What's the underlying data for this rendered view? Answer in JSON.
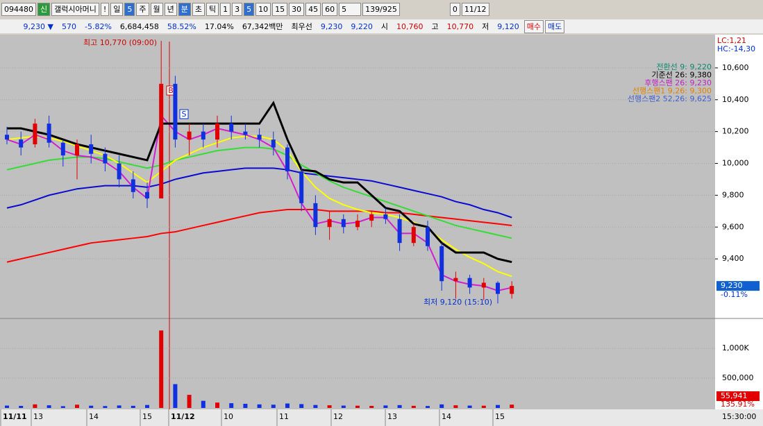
{
  "toolbar": {
    "code": "094480",
    "badge": "신",
    "name": "갤럭시아머니",
    "alert": "!",
    "periods": [
      "일",
      "5",
      "주",
      "월",
      "년",
      "분",
      "초",
      "틱"
    ],
    "intervals": [
      "1",
      "3",
      "5",
      "10",
      "15",
      "30",
      "45",
      "60"
    ],
    "count": "5",
    "shown": "139",
    "total": "/925",
    "date": "11/12",
    "check": "0"
  },
  "quote_bar": {
    "price": "9,230 ▼",
    "change": "570",
    "change_pct": "-5.82%",
    "volume": "6,684,458",
    "ratio1": "58.52%",
    "ratio2": "17.04%",
    "amount": "67,342백만",
    "best_label": "최우선",
    "ask": "9,230",
    "bid": "9,220",
    "open_label": "시",
    "open": "10,760",
    "high_label": "고",
    "high": "10,770",
    "low_label": "저",
    "low": "9,120",
    "buy": "매수",
    "sell": "매도"
  },
  "price_chart": {
    "type": "candlestick",
    "ylim": [
      9030,
      10800
    ],
    "yticks": [
      {
        "value": 9400,
        "label": "9,400"
      },
      {
        "value": 9600,
        "label": "9,600"
      },
      {
        "value": 9800,
        "label": "9,800"
      },
      {
        "value": 10000,
        "label": "10,000"
      },
      {
        "value": 10200,
        "label": "10,200"
      },
      {
        "value": 10400,
        "label": "10,400"
      },
      {
        "value": 10600,
        "label": "10,600"
      }
    ],
    "candles": [
      {
        "open": 10180,
        "high": 10230,
        "low": 10120,
        "close": 10150
      },
      {
        "open": 10150,
        "high": 10200,
        "low": 10050,
        "close": 10100
      },
      {
        "open": 10120,
        "high": 10280,
        "low": 10100,
        "close": 10250
      },
      {
        "open": 10250,
        "high": 10300,
        "low": 10100,
        "close": 10130
      },
      {
        "open": 10130,
        "high": 10150,
        "low": 9980,
        "close": 10050
      },
      {
        "open": 10050,
        "high": 10150,
        "low": 9900,
        "close": 10120
      },
      {
        "open": 10120,
        "high": 10180,
        "low": 10000,
        "close": 10060
      },
      {
        "open": 10060,
        "high": 10100,
        "low": 9950,
        "close": 10000
      },
      {
        "open": 10000,
        "high": 10050,
        "low": 9850,
        "close": 9900
      },
      {
        "open": 9900,
        "high": 9950,
        "low": 9780,
        "close": 9820
      },
      {
        "open": 9820,
        "high": 9880,
        "low": 9720,
        "close": 9780
      },
      {
        "open": 9780,
        "high": 10770,
        "low": 9780,
        "close": 10500
      },
      {
        "open": 10500,
        "high": 10550,
        "low": 10100,
        "close": 10150
      },
      {
        "open": 10150,
        "high": 10250,
        "low": 10050,
        "close": 10200
      },
      {
        "open": 10200,
        "high": 10250,
        "low": 10100,
        "close": 10150
      },
      {
        "open": 10150,
        "high": 10300,
        "low": 10100,
        "close": 10250
      },
      {
        "open": 10250,
        "high": 10300,
        "low": 10150,
        "close": 10200
      },
      {
        "open": 10200,
        "high": 10250,
        "low": 10150,
        "close": 10180
      },
      {
        "open": 10180,
        "high": 10220,
        "low": 10100,
        "close": 10150
      },
      {
        "open": 10150,
        "high": 10200,
        "low": 10050,
        "close": 10100
      },
      {
        "open": 10100,
        "high": 10120,
        "low": 9900,
        "close": 9950
      },
      {
        "open": 9950,
        "high": 9980,
        "low": 9700,
        "close": 9750
      },
      {
        "open": 9750,
        "high": 9800,
        "low": 9550,
        "close": 9600
      },
      {
        "open": 9600,
        "high": 9700,
        "low": 9520,
        "close": 9650
      },
      {
        "open": 9650,
        "high": 9680,
        "low": 9560,
        "close": 9600
      },
      {
        "open": 9600,
        "high": 9680,
        "low": 9580,
        "close": 9640
      },
      {
        "open": 9640,
        "high": 9700,
        "low": 9600,
        "close": 9680
      },
      {
        "open": 9680,
        "high": 9720,
        "low": 9620,
        "close": 9650
      },
      {
        "open": 9650,
        "high": 9680,
        "low": 9450,
        "close": 9500
      },
      {
        "open": 9500,
        "high": 9620,
        "low": 9480,
        "close": 9600
      },
      {
        "open": 9600,
        "high": 9640,
        "low": 9450,
        "close": 9480
      },
      {
        "open": 9480,
        "high": 9500,
        "low": 9200,
        "close": 9260
      },
      {
        "open": 9260,
        "high": 9320,
        "low": 9150,
        "close": 9280
      },
      {
        "open": 9280,
        "high": 9300,
        "low": 9180,
        "close": 9220
      },
      {
        "open": 9220,
        "high": 9280,
        "low": 9140,
        "close": 9250
      },
      {
        "open": 9250,
        "high": 9260,
        "low": 9120,
        "close": 9180
      },
      {
        "open": 9180,
        "high": 9260,
        "low": 9150,
        "close": 9230
      }
    ],
    "lines": [
      {
        "color": "#ff0000",
        "values": [
          9380,
          9400,
          9420,
          9440,
          9460,
          9480,
          9500,
          9510,
          9520,
          9530,
          9540,
          9560,
          9570,
          9590,
          9610,
          9630,
          9650,
          9670,
          9690,
          9700,
          9710,
          9710,
          9710,
          9700,
          9700,
          9700,
          9700,
          9690,
          9690,
          9680,
          9670,
          9660,
          9650,
          9640,
          9630,
          9620,
          9610
        ]
      },
      {
        "color": "#0a0ad0",
        "values": [
          9720,
          9740,
          9770,
          9800,
          9820,
          9840,
          9850,
          9860,
          9860,
          9860,
          9850,
          9870,
          9900,
          9920,
          9940,
          9950,
          9960,
          9970,
          9970,
          9970,
          9960,
          9940,
          9930,
          9920,
          9910,
          9900,
          9890,
          9870,
          9850,
          9830,
          9810,
          9790,
          9760,
          9740,
          9710,
          9690,
          9660
        ]
      },
      {
        "color": "#33dd33",
        "values": [
          9960,
          9980,
          10000,
          10020,
          10030,
          10040,
          10040,
          10030,
          10010,
          9990,
          9970,
          9990,
          10020,
          10040,
          10060,
          10080,
          10090,
          10100,
          10100,
          10090,
          10050,
          9990,
          9940,
          9890,
          9850,
          9820,
          9790,
          9760,
          9730,
          9700,
          9670,
          9640,
          9610,
          9590,
          9570,
          9550,
          9530
        ]
      },
      {
        "color": "#ffff00",
        "values": [
          10150,
          10160,
          10170,
          10160,
          10140,
          10110,
          10080,
          10050,
          10000,
          9940,
          9880,
          9950,
          10020,
          10060,
          10100,
          10130,
          10160,
          10170,
          10170,
          10150,
          10080,
          9950,
          9850,
          9780,
          9740,
          9710,
          9690,
          9680,
          9660,
          9630,
          9590,
          9520,
          9460,
          9410,
          9370,
          9320,
          9290
        ]
      },
      {
        "color": "#d020d0",
        "values": [
          10150,
          10120,
          10180,
          10150,
          10080,
          10050,
          10040,
          10010,
          9950,
          9850,
          9780,
          10300,
          10200,
          10150,
          10180,
          10220,
          10200,
          10180,
          10150,
          10100,
          9950,
          9750,
          9620,
          9640,
          9620,
          9630,
          9660,
          9660,
          9560,
          9560,
          9500,
          9300,
          9260,
          9240,
          9230,
          9200,
          9220
        ]
      },
      {
        "color": "#000000",
        "values": [
          10220,
          10220,
          10200,
          10180,
          10150,
          10120,
          10100,
          10080,
          10060,
          10040,
          10020,
          10250,
          10250,
          10250,
          10250,
          10250,
          10250,
          10250,
          10250,
          10380,
          10150,
          9960,
          9950,
          9900,
          9880,
          9880,
          9800,
          9720,
          9700,
          9620,
          9600,
          9500,
          9440,
          9440,
          9440,
          9400,
          9380
        ]
      }
    ],
    "legend": [
      {
        "text": "전환선 9: 9,220",
        "color": "#0c8a6a"
      },
      {
        "text": "기준선 26: 9,380",
        "color": "#000000"
      },
      {
        "text": "후행스팬 26: 9,230",
        "color": "#c020c0"
      },
      {
        "text": "선행스팬1 9,26: 9,300",
        "color": "#e08000"
      },
      {
        "text": "선행스팬2 52,26: 9,625",
        "color": "#4060d0"
      }
    ],
    "lc": "LC:1,21",
    "hc": "HC:-14,30",
    "last_price": "9,230",
    "last_change": "-0.11%",
    "high_note": "최고 10,770 (09:00)",
    "low_note": "최저 9,120 (15:10)",
    "buy_marker": "B",
    "sell_marker": "S"
  },
  "volume_chart": {
    "type": "bar",
    "ylim": [
      0,
      1490000
    ],
    "yticks": [
      {
        "value": 500000,
        "label": "500,000"
      },
      {
        "value": 1000000,
        "label": "1,000K"
      }
    ],
    "values": [
      40000,
      35000,
      60000,
      45000,
      30000,
      55000,
      38000,
      32000,
      42000,
      36000,
      50000,
      1300000,
      400000,
      220000,
      120000,
      90000,
      80000,
      70000,
      60000,
      55000,
      75000,
      65000,
      50000,
      45000,
      40000,
      38000,
      35000,
      42000,
      48000,
      36000,
      33000,
      60000,
      45000,
      40000,
      38000,
      50000,
      55941
    ],
    "last_volume": "55,941",
    "last_ratio": "135.91%"
  },
  "x_axis": {
    "labels": [
      "11/11",
      "13",
      "14",
      "15",
      "11/12",
      "10",
      "11",
      "12",
      "13",
      "14",
      "15"
    ],
    "time": "15:30:00"
  }
}
